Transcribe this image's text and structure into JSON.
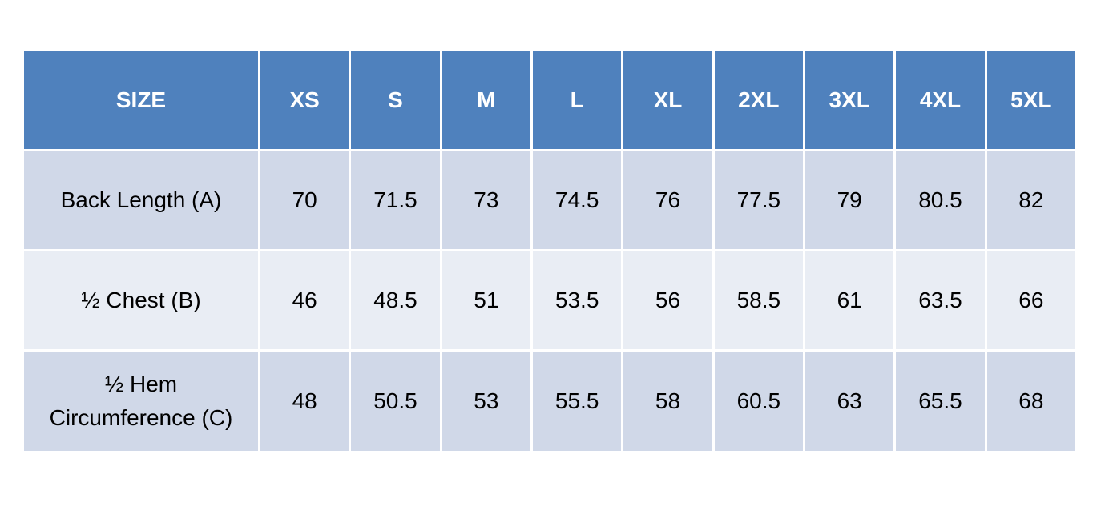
{
  "table": {
    "header": [
      "SIZE",
      "XS",
      "S",
      "M",
      "L",
      "XL",
      "2XL",
      "3XL",
      "4XL",
      "5XL"
    ],
    "rows": [
      [
        "Back Length (A)",
        "70",
        "71.5",
        "73",
        "74.5",
        "76",
        "77.5",
        "79",
        "80.5",
        "82"
      ],
      [
        "½ Chest (B)",
        "46",
        "48.5",
        "51",
        "53.5",
        "56",
        "58.5",
        "61",
        "63.5",
        "66"
      ],
      [
        "½ Hem\nCircumference (C)",
        "48",
        "50.5",
        "53",
        "55.5",
        "58",
        "60.5",
        "63",
        "65.5",
        "68"
      ]
    ]
  }
}
